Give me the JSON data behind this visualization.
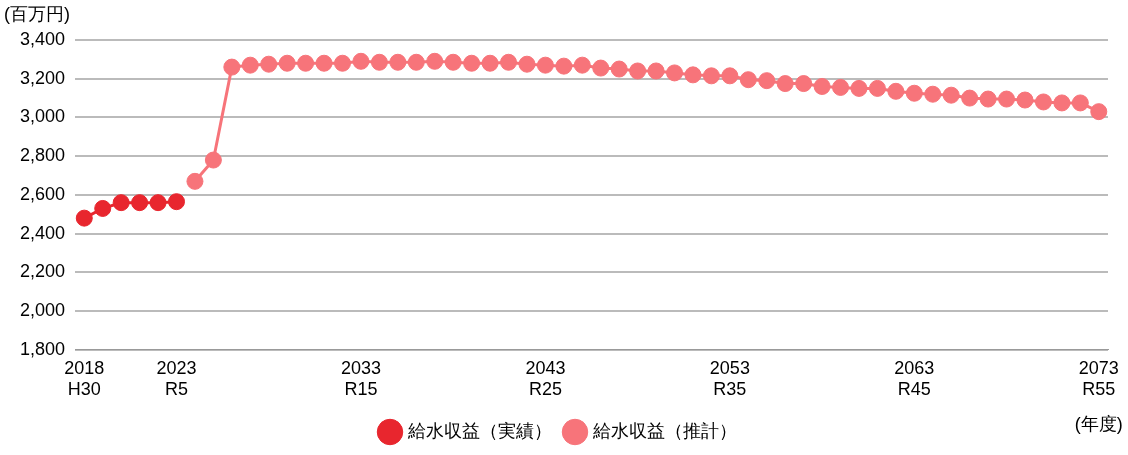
{
  "chart_data": {
    "type": "line",
    "ylabel": "(百万円)",
    "xlabel": "(年度)",
    "categories": [
      "2018\nH30",
      null,
      null,
      null,
      null,
      "2023\nR5",
      null,
      null,
      null,
      null,
      null,
      null,
      null,
      null,
      null,
      "2033\nR15",
      null,
      null,
      null,
      null,
      null,
      null,
      null,
      null,
      null,
      "2043\nR25",
      null,
      null,
      null,
      null,
      null,
      null,
      null,
      null,
      null,
      "2053\nR35",
      null,
      null,
      null,
      null,
      null,
      null,
      null,
      null,
      null,
      "2063\nR45",
      null,
      null,
      null,
      null,
      null,
      null,
      null,
      null,
      null,
      "2073\nR55"
    ],
    "series": [
      {
        "name": "給水収益（実績）",
        "color": "#e8262e",
        "values": [
          2480,
          2530,
          2560,
          2560,
          2560,
          2565,
          null,
          null,
          null,
          null,
          null,
          null,
          null,
          null,
          null,
          null,
          null,
          null,
          null,
          null,
          null,
          null,
          null,
          null,
          null,
          null,
          null,
          null,
          null,
          null,
          null,
          null,
          null,
          null,
          null,
          null,
          null,
          null,
          null,
          null,
          null,
          null,
          null,
          null,
          null,
          null,
          null,
          null,
          null,
          null,
          null,
          null,
          null,
          null,
          null,
          null
        ]
      },
      {
        "name": "給水収益（推計）",
        "color": "#f7747a",
        "values": [
          null,
          null,
          null,
          null,
          null,
          null,
          2670,
          2780,
          3260,
          3270,
          3275,
          3280,
          3280,
          3280,
          3280,
          3290,
          3285,
          3285,
          3285,
          3290,
          3285,
          3280,
          3280,
          3285,
          3275,
          3270,
          3265,
          3270,
          3255,
          3250,
          3240,
          3240,
          3230,
          3220,
          3215,
          3215,
          3195,
          3190,
          3175,
          3175,
          3160,
          3155,
          3150,
          3150,
          3135,
          3125,
          3120,
          3115,
          3100,
          3095,
          3095,
          3090,
          3080,
          3075,
          3075,
          3030
        ]
      }
    ],
    "ylim": [
      1800,
      3400
    ],
    "yticks": [
      {
        "value": 1800,
        "label": "1,800"
      },
      {
        "value": 2000,
        "label": "2,000"
      },
      {
        "value": 2200,
        "label": "2,200"
      },
      {
        "value": 2400,
        "label": "2,400"
      },
      {
        "value": 2600,
        "label": "2,600"
      },
      {
        "value": 2800,
        "label": "2,800"
      },
      {
        "value": 3000,
        "label": "3,000"
      },
      {
        "value": 3200,
        "label": "3,200"
      },
      {
        "value": 3400,
        "label": "3,400"
      }
    ],
    "grid": "y",
    "legend": "bottom",
    "marker": "circle",
    "line_style": "solid"
  }
}
